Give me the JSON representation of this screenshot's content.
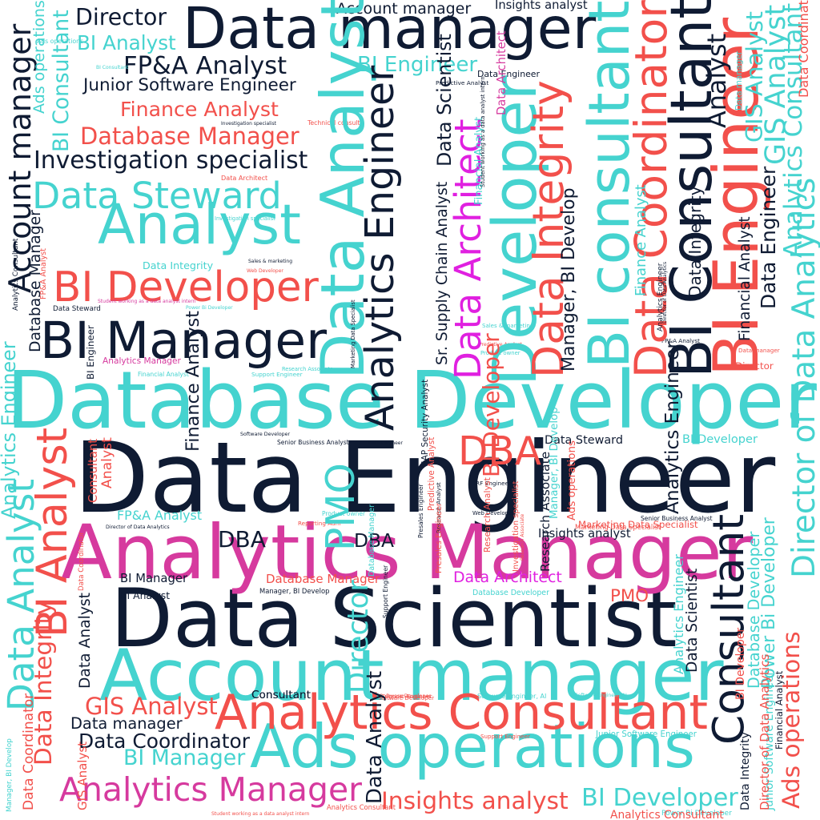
{
  "palette": {
    "navy": "#0f1b33",
    "teal": "#45d3cf",
    "red": "#f2504b",
    "pink": "#d63a9e",
    "magenta": "#e020e0"
  },
  "words": [
    {
      "text": "Database Developer",
      "color": "#45d3cf",
      "vertical": false
    },
    {
      "text": "Data Engineer",
      "color": "#0f1b33",
      "vertical": false
    },
    {
      "text": "Data Scientist",
      "color": "#0f1b33",
      "vertical": false
    },
    {
      "text": "Analytics Manager",
      "color": "#d63a9e",
      "vertical": false
    },
    {
      "text": "Data manager",
      "color": "#0f1b33",
      "vertical": false
    },
    {
      "text": "Account manager",
      "color": "#45d3cf",
      "vertical": false
    },
    {
      "text": "Ads operations",
      "color": "#45d3cf",
      "vertical": false
    },
    {
      "text": "Analytics Consultant",
      "color": "#f2504b",
      "vertical": false
    },
    {
      "text": "BI Manager",
      "color": "#0f1b33",
      "vertical": false
    },
    {
      "text": "Analyst",
      "color": "#45d3cf",
      "vertical": false
    },
    {
      "text": "BI Developer",
      "color": "#f2504b",
      "vertical": false
    },
    {
      "text": "Data Steward",
      "color": "#45d3cf",
      "vertical": false
    },
    {
      "text": "Investigation specialist",
      "color": "#0f1b33",
      "vertical": false
    },
    {
      "text": "Database Manager",
      "color": "#f2504b",
      "vertical": false
    },
    {
      "text": "Finance Analyst",
      "color": "#f2504b",
      "vertical": false
    },
    {
      "text": "Junior Software Engineer",
      "color": "#0f1b33",
      "vertical": false
    },
    {
      "text": "FP&A Analyst",
      "color": "#0f1b33",
      "vertical": false
    },
    {
      "text": "BI Analyst",
      "color": "#45d3cf",
      "vertical": false
    },
    {
      "text": "Director",
      "color": "#0f1b33",
      "vertical": false
    },
    {
      "text": "Account manager",
      "color": "#0f1b33",
      "vertical": false
    },
    {
      "text": "Insights analyst",
      "color": "#0f1b33",
      "vertical": false
    },
    {
      "text": "BI Engineer",
      "color": "#45d3cf",
      "vertical": false
    },
    {
      "text": "Analytics Manager",
      "color": "#d63a9e",
      "vertical": false
    },
    {
      "text": "Insights analyst",
      "color": "#f2504b",
      "vertical": false
    },
    {
      "text": "BI Developer",
      "color": "#45d3cf",
      "vertical": false
    },
    {
      "text": "GIS Analyst",
      "color": "#f2504b",
      "vertical": false
    },
    {
      "text": "Data Coordinator",
      "color": "#0f1b33",
      "vertical": false
    },
    {
      "text": "BI Manager",
      "color": "#45d3cf",
      "vertical": false
    },
    {
      "text": "Data manager",
      "color": "#0f1b33",
      "vertical": false
    },
    {
      "text": "Data Architect",
      "color": "#e020e0",
      "vertical": false
    },
    {
      "text": "Database Manager",
      "color": "#f2504b",
      "vertical": false
    },
    {
      "text": "FP&A Analyst",
      "color": "#45d3cf",
      "vertical": false
    },
    {
      "text": "DBA",
      "color": "#0f1b33",
      "vertical": false
    },
    {
      "text": "DBA",
      "color": "#0f1b33",
      "vertical": false
    },
    {
      "text": "Director",
      "color": "#f2504b",
      "vertical": false
    },
    {
      "text": "Insights analyst",
      "color": "#0f1b33",
      "vertical": false
    },
    {
      "text": "Marketing Data Specialist",
      "color": "#f2504b",
      "vertical": false
    },
    {
      "text": "PMO",
      "color": "#f2504b",
      "vertical": false
    },
    {
      "text": "DBA",
      "color": "#f2504b",
      "vertical": false
    },
    {
      "text": "Data Engineer",
      "color": "#0f1b33",
      "vertical": false
    },
    {
      "text": "Data Steward",
      "color": "#0f1b33",
      "vertical": false
    },
    {
      "text": "BI Developer",
      "color": "#45d3cf",
      "vertical": false
    },
    {
      "text": "BI Manager",
      "color": "#0f1b33",
      "vertical": false
    },
    {
      "text": "BI Analyst",
      "color": "#0f1b33",
      "vertical": false
    },
    {
      "text": "Manager, BI Develop",
      "color": "#0f1b33",
      "vertical": false
    },
    {
      "text": "Consultant",
      "color": "#0f1b33",
      "vertical": false
    },
    {
      "text": "Data Steward",
      "color": "#0f1b33",
      "vertical": false
    },
    {
      "text": "Database Developer",
      "color": "#45d3cf",
      "vertical": false
    },
    {
      "text": "Senior Business Analyst",
      "color": "#0f1b33",
      "vertical": false
    },
    {
      "text": "Data Engineer",
      "color": "#0f1b33",
      "vertical": false
    },
    {
      "text": "Predictive Analyst",
      "color": "#0f1b33",
      "vertical": false
    },
    {
      "text": "Technical consulta",
      "color": "#f2504b",
      "vertical": false
    },
    {
      "text": "Junior Software Engineer",
      "color": "#45d3cf",
      "vertical": false
    },
    {
      "text": "Investigation specialist",
      "color": "#0f1b33",
      "vertical": false
    },
    {
      "text": "Power Bi Developer",
      "color": "#45d3cf",
      "vertical": false
    },
    {
      "text": "Student working as a data analyst intern",
      "color": "#f2504b",
      "vertical": false
    },
    {
      "text": "Analytics Consultant",
      "color": "#f2504b",
      "vertical": false
    },
    {
      "text": "Data Architect",
      "color": "#f2504b",
      "vertical": false
    },
    {
      "text": "Investigation specialist",
      "color": "#45d3cf",
      "vertical": false
    },
    {
      "text": "Research Associate",
      "color": "#45d3cf",
      "vertical": false
    },
    {
      "text": "Sales & marketing",
      "color": "#0f1b33",
      "vertical": false
    },
    {
      "text": "Web Developer",
      "color": "#f2504b",
      "vertical": false
    },
    {
      "text": "Data Integrity",
      "color": "#45d3cf",
      "vertical": false
    },
    {
      "text": "Student working as a data analyst intern",
      "color": "#d63a9e",
      "vertical": false
    },
    {
      "text": "Power Bi Developer",
      "color": "#45d3cf",
      "vertical": false
    },
    {
      "text": "Analytics Manager",
      "color": "#d63a9e",
      "vertical": false
    },
    {
      "text": "Financial Analyst",
      "color": "#45d3cf",
      "vertical": false
    },
    {
      "text": "Support Engineer",
      "color": "#45d3cf",
      "vertical": false
    },
    {
      "text": "Director of Data Analytics",
      "color": "#0f1b33",
      "vertical": false
    },
    {
      "text": "Reporting Adm",
      "color": "#f2504b",
      "vertical": false
    },
    {
      "text": "Product owner",
      "color": "#45d3cf",
      "vertical": false
    },
    {
      "text": "Software Developer",
      "color": "#0f1b33",
      "vertical": false
    },
    {
      "text": "RF Engineer",
      "color": "#0f1b33",
      "vertical": false
    },
    {
      "text": "Web Developer",
      "color": "#0f1b33",
      "vertical": false
    },
    {
      "text": "Software Engineer, AI",
      "color": "#45d3cf",
      "vertical": false
    },
    {
      "text": "Software Developer",
      "color": "#f2504b",
      "vertical": false
    },
    {
      "text": "Support Engineer",
      "color": "#f2504b",
      "vertical": false
    },
    {
      "text": "Senior Business Analyst",
      "color": "#0f1b33",
      "vertical": false
    },
    {
      "text": "Sales & marketing",
      "color": "#45d3cf",
      "vertical": false
    },
    {
      "text": "Predictive Analyst",
      "color": "#f2504b",
      "vertical": false
    },
    {
      "text": "Product owner",
      "color": "#45d3cf",
      "vertical": false
    },
    {
      "text": "FP&A Analyst",
      "color": "#0f1b33",
      "vertical": false
    },
    {
      "text": "Data manager",
      "color": "#f2504b",
      "vertical": false
    },
    {
      "text": "Marketing Data Specialist",
      "color": "#f2504b",
      "vertical": false
    },
    {
      "text": "Analytics Consultant",
      "color": "#f2504b",
      "vertical": false
    },
    {
      "text": "Ads operations",
      "color": "#45d3cf",
      "vertical": false
    },
    {
      "text": "BI Consultant",
      "color": "#45d3cf",
      "vertical": false
    },
    {
      "text": "Support Engineer",
      "color": "#f2504b",
      "vertical": false
    },
    {
      "text": "Software Engineer, AI",
      "color": "#45d3cf",
      "vertical": false
    },
    {
      "text": "Software Developer",
      "color": "#f2504b",
      "vertical": false
    },
    {
      "text": "Consultant",
      "color": "#0f1b33",
      "vertical": false
    },
    {
      "text": "Data Analyst",
      "color": "#45d3cf",
      "vertical": true
    },
    {
      "text": "Analytics Engineer",
      "color": "#0f1b33",
      "vertical": true
    },
    {
      "text": "Developer",
      "color": "#45d3cf",
      "vertical": true
    },
    {
      "text": "BI consultant",
      "color": "#45d3cf",
      "vertical": true
    },
    {
      "text": "Data Coordinator",
      "color": "#f2504b",
      "vertical": true
    },
    {
      "text": "BI Consultant",
      "color": "#0f1b33",
      "vertical": true
    },
    {
      "text": "BI Engineer",
      "color": "#f2504b",
      "vertical": true
    },
    {
      "text": "Data Integrity",
      "color": "#f2504b",
      "vertical": true
    },
    {
      "text": "Data Architect",
      "color": "#e020e0",
      "vertical": true
    },
    {
      "text": "Consultant",
      "color": "#0f1b33",
      "vertical": true
    },
    {
      "text": "Account manager",
      "color": "#0f1b33",
      "vertical": true
    },
    {
      "text": "BI Analyst",
      "color": "#f2504b",
      "vertical": true
    },
    {
      "text": "Analytics Engineer",
      "color": "#45d3cf",
      "vertical": true
    },
    {
      "text": "Data Analyst",
      "color": "#45d3cf",
      "vertical": true
    },
    {
      "text": "Ads operations",
      "color": "#f2504b",
      "vertical": true
    },
    {
      "text": "Director of Data Analytics",
      "color": "#45d3cf",
      "vertical": true
    },
    {
      "text": "Analytics Consultant",
      "color": "#45d3cf",
      "vertical": true
    },
    {
      "text": "GIS Analyst",
      "color": "#45d3cf",
      "vertical": true
    },
    {
      "text": "BI Consultant",
      "color": "#45d3cf",
      "vertical": true
    },
    {
      "text": "Ads operations",
      "color": "#45d3cf",
      "vertical": true
    },
    {
      "text": "Analyst",
      "color": "#0f1b33",
      "vertical": true
    },
    {
      "text": "Financial Analyst",
      "color": "#0f1b33",
      "vertical": true
    },
    {
      "text": "Data Engineer",
      "color": "#0f1b33",
      "vertical": true
    },
    {
      "text": "Consultant",
      "color": "#f2504b",
      "vertical": true
    },
    {
      "text": "Analyst",
      "color": "#f2504b",
      "vertical": true
    },
    {
      "text": "Marketing Data Specialist",
      "color": "#0f1b33",
      "vertical": true
    },
    {
      "text": "Manager, BI Develop",
      "color": "#0f1b33",
      "vertical": true
    },
    {
      "text": "BI Engineer",
      "color": "#0f1b33",
      "vertical": true
    },
    {
      "text": "Database Manager",
      "color": "#0f1b33",
      "vertical": true
    },
    {
      "text": "FP&A Analyst",
      "color": "#f2504b",
      "vertical": true
    },
    {
      "text": "Finance Analyst",
      "color": "#0f1b33",
      "vertical": true
    },
    {
      "text": "Data Integrity",
      "color": "#f2504b",
      "vertical": true
    },
    {
      "text": "Data Coordinator",
      "color": "#f2504b",
      "vertical": true
    },
    {
      "text": "Data Analyst",
      "color": "#0f1b33",
      "vertical": true
    },
    {
      "text": "PMO",
      "color": "#45d3cf",
      "vertical": true
    },
    {
      "text": "Director",
      "color": "#45d3cf",
      "vertical": true
    },
    {
      "text": "Financial Analyst",
      "color": "#45d3cf",
      "vertical": true
    },
    {
      "text": "Data Integrity",
      "color": "#0f1b33",
      "vertical": true
    },
    {
      "text": "BI Developer",
      "color": "#f2504b",
      "vertical": true
    },
    {
      "text": "Power Bi Developer",
      "color": "#45d3cf",
      "vertical": true
    },
    {
      "text": "Database Developer",
      "color": "#45d3cf",
      "vertical": true
    },
    {
      "text": "Data Scientist",
      "color": "#0f1b33",
      "vertical": true
    },
    {
      "text": "Analytics Engineer",
      "color": "#0f1b33",
      "vertical": true
    },
    {
      "text": "Analytics Engineer",
      "color": "#45d3cf",
      "vertical": true
    },
    {
      "text": "Finance Analyst",
      "color": "#45d3cf",
      "vertical": true
    },
    {
      "text": "Manager, BI Develop",
      "color": "#45d3cf",
      "vertical": true
    },
    {
      "text": "Data Coordinator",
      "color": "#f2504b",
      "vertical": true
    },
    {
      "text": "Junior Software Engineer",
      "color": "#45d3cf",
      "vertical": true
    },
    {
      "text": "Director of Data Analytics",
      "color": "#f2504b",
      "vertical": true
    },
    {
      "text": "Database Manager",
      "color": "#45d3cf",
      "vertical": true
    },
    {
      "text": "Support Engineer",
      "color": "#0f1b33",
      "vertical": true
    },
    {
      "text": "Presales Engineer",
      "color": "#0f1b33",
      "vertical": true
    },
    {
      "text": "Research Analyst",
      "color": "#0f1b33",
      "vertical": true
    },
    {
      "text": "Research Analyst",
      "color": "#f2504b",
      "vertical": true
    },
    {
      "text": "Presales Engineer",
      "color": "#f2504b",
      "vertical": true
    },
    {
      "text": "Research Associate",
      "color": "#f2504b",
      "vertical": true
    },
    {
      "text": "Research Associate",
      "color": "#0f1b33",
      "vertical": true
    },
    {
      "text": "Investigation specialist",
      "color": "#f2504b",
      "vertical": true
    },
    {
      "text": "Predictive Analyst",
      "color": "#f2504b",
      "vertical": true
    },
    {
      "text": "SAP Security Analyst",
      "color": "#0f1b33",
      "vertical": true
    },
    {
      "text": "Sr. Supply Chain Analyst",
      "color": "#0f1b33",
      "vertical": true
    },
    {
      "text": "Student working as a data analyst intern",
      "color": "#0f1b33",
      "vertical": true
    },
    {
      "text": "Financial Analyst",
      "color": "#0f1b33",
      "vertical": true
    },
    {
      "text": "GIS Analyst",
      "color": "#f2504b",
      "vertical": true
    },
    {
      "text": "Data Integrity",
      "color": "#0f1b33",
      "vertical": true
    },
    {
      "text": "Analytics Consultant",
      "color": "#0f1b33",
      "vertical": true
    },
    {
      "text": "BI Developer",
      "color": "#f2504b",
      "vertical": true
    },
    {
      "text": "Ads operations",
      "color": "#f2504b",
      "vertical": true
    },
    {
      "text": "Manager, BI Develop",
      "color": "#45d3cf",
      "vertical": true
    },
    {
      "text": "Data Coordinator",
      "color": "#f2504b",
      "vertical": true
    },
    {
      "text": "Data Analyst",
      "color": "#0f1b33",
      "vertical": true
    },
    {
      "text": "Analytics Engineer",
      "color": "#0f1b33",
      "vertical": true
    },
    {
      "text": "Data Scientist",
      "color": "#0f1b33",
      "vertical": true
    },
    {
      "text": "Data Architect",
      "color": "#d63a9e",
      "vertical": true
    },
    {
      "text": "Director of Data Analytics",
      "color": "#0f1b33",
      "vertical": true
    },
    {
      "text": "GIS Analyst",
      "color": "#45d3cf",
      "vertical": true
    },
    {
      "text": "Data manager",
      "color": "#45d3cf",
      "vertical": true
    }
  ]
}
